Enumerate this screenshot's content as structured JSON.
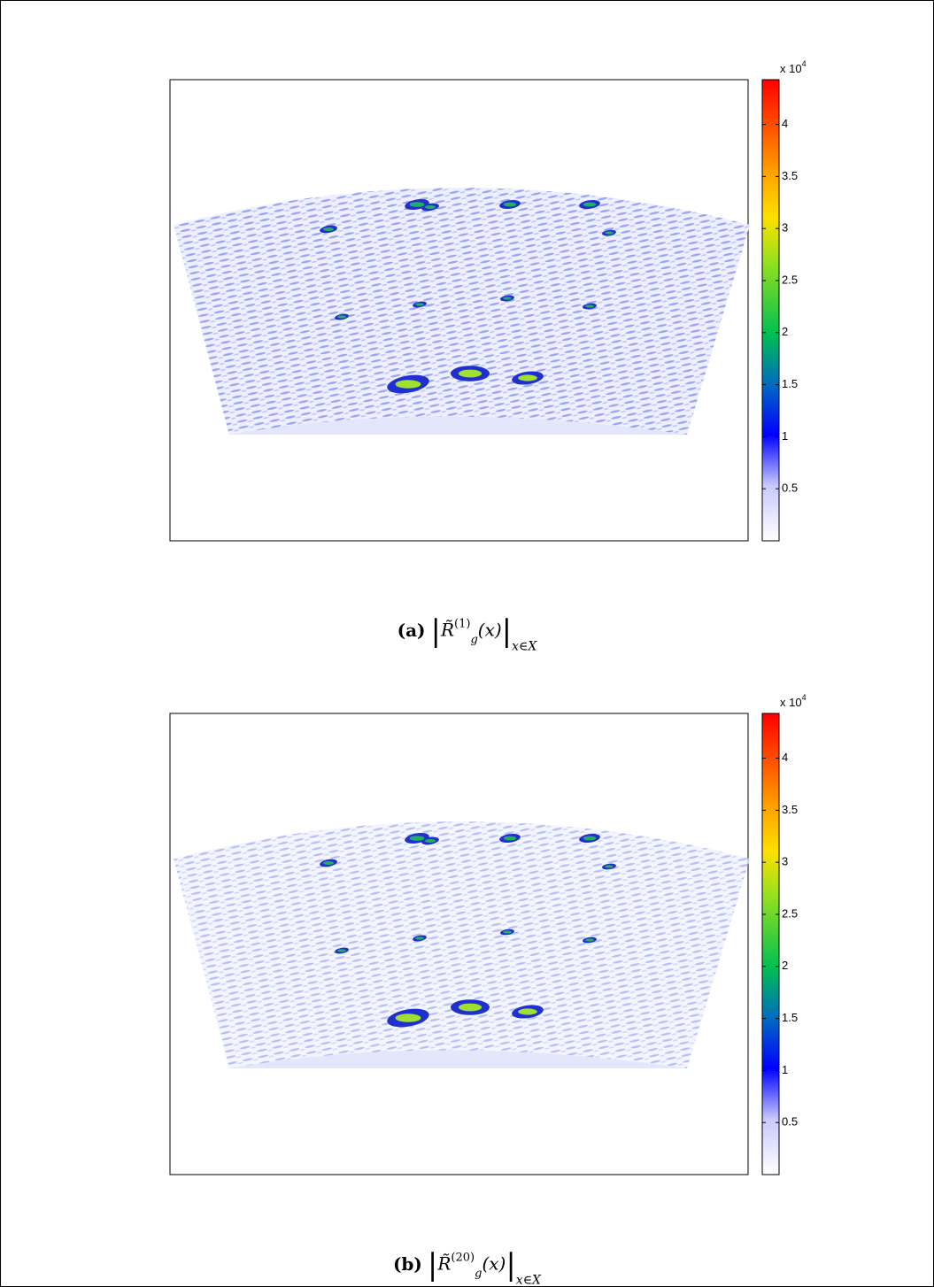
{
  "figures": [
    {
      "label": "(a)",
      "caption": {
        "base": "R̃",
        "sup": "(1)",
        "sub": "g",
        "arg": "(x)",
        "range": "x∈X"
      },
      "colorbar": {
        "clim": [
          0,
          4.43
        ],
        "ticks": [
          0.5,
          1,
          1.5,
          2,
          2.5,
          3,
          3.5,
          4
        ],
        "multiplier": "x 10",
        "exponent": "4"
      }
    },
    {
      "label": "(b)",
      "caption": {
        "base": "R̃",
        "sup": "(20)",
        "sub": "g",
        "arg": "(x)",
        "range": "x∈X"
      },
      "colorbar": {
        "clim": [
          0,
          4.43
        ],
        "ticks": [
          0.5,
          1,
          1.5,
          2,
          2.5,
          3,
          3.5,
          4
        ],
        "multiplier": "x 10",
        "exponent": "4"
      }
    }
  ]
}
